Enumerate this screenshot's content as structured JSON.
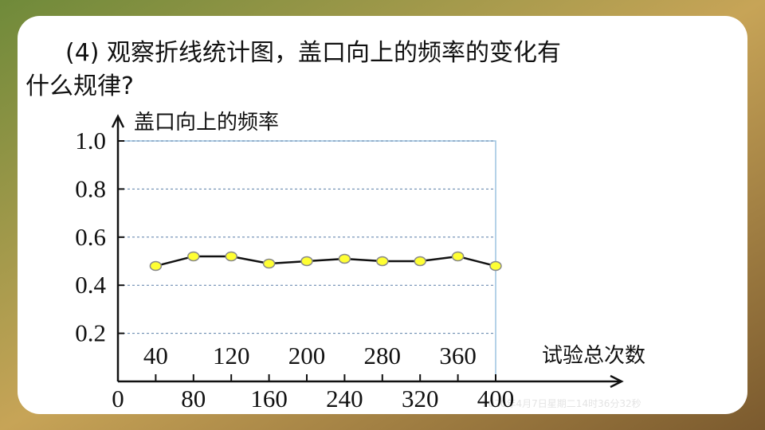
{
  "question": [
    "(4) 观察折线统计图，盖口向上的频率的变化有",
    "什么规律?"
  ],
  "timestamp": "2020年4月7日星期二14时36分32秒",
  "chart_data": {
    "type": "line",
    "y_label": "盖口向上的频率",
    "x_label": "试验总次数",
    "x": [
      40,
      80,
      120,
      160,
      200,
      240,
      280,
      320,
      360,
      400
    ],
    "series": [
      {
        "color": "#ffff33",
        "values": [
          0.48,
          0.52,
          0.52,
          0.49,
          0.5,
          0.51,
          0.5,
          0.5,
          0.52,
          0.48
        ]
      }
    ],
    "xlim": [
      0,
      400
    ],
    "xticks": [
      0,
      40,
      80,
      120,
      160,
      200,
      240,
      280,
      320,
      360,
      400
    ],
    "ylim": [
      0,
      1
    ],
    "yticks": [
      0.2,
      0.4,
      0.6,
      0.8,
      {
        "value": 1,
        "label": "1.0"
      }
    ],
    "grid": true
  }
}
